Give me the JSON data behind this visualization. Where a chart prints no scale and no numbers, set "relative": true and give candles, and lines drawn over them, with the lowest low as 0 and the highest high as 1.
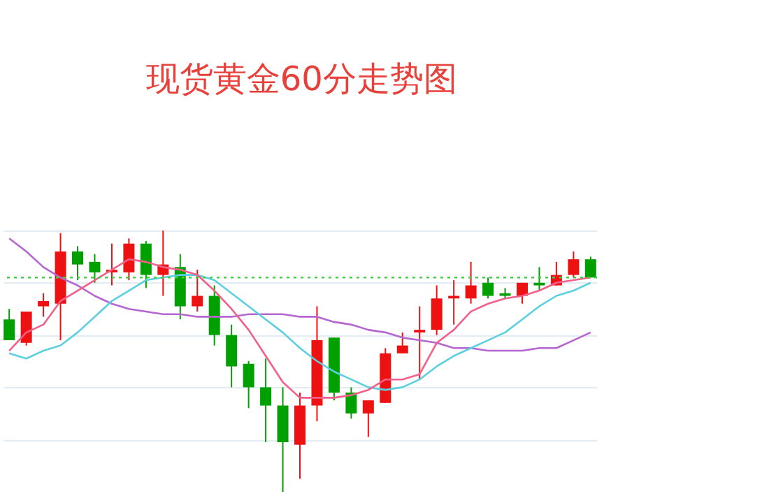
{
  "chart_data": {
    "type": "candlestick",
    "title": "现货黄金60分走势图",
    "relative": true,
    "categories": [
      null,
      null,
      null,
      null,
      null,
      null,
      null,
      null,
      null,
      null,
      null,
      null,
      null,
      null,
      null,
      null,
      null,
      null,
      null,
      null,
      null,
      null,
      null,
      null,
      null,
      null,
      null,
      null,
      null,
      null,
      null,
      null,
      null,
      null,
      null
    ],
    "ohlc": [
      [
        0.66,
        0.7,
        0.58,
        0.58
      ],
      [
        0.57,
        0.69,
        0.56,
        0.69
      ],
      [
        0.71,
        0.76,
        0.67,
        0.73
      ],
      [
        0.72,
        0.99,
        0.58,
        0.92
      ],
      [
        0.92,
        0.94,
        0.81,
        0.87
      ],
      [
        0.88,
        0.91,
        0.8,
        0.84
      ],
      [
        0.84,
        0.95,
        0.79,
        0.85
      ],
      [
        0.84,
        0.97,
        0.81,
        0.95
      ],
      [
        0.95,
        0.96,
        0.78,
        0.83
      ],
      [
        0.83,
        1.0,
        0.75,
        0.87
      ],
      [
        0.86,
        0.91,
        0.66,
        0.71
      ],
      [
        0.71,
        0.85,
        0.69,
        0.75
      ],
      [
        0.75,
        0.79,
        0.56,
        0.6
      ],
      [
        0.6,
        0.64,
        0.4,
        0.48
      ],
      [
        0.49,
        0.5,
        0.32,
        0.4
      ],
      [
        0.4,
        0.51,
        0.19,
        0.33
      ],
      [
        0.33,
        0.4,
        0,
        0.19
      ],
      [
        0.18,
        0.38,
        0.05,
        0.33
      ],
      [
        0.33,
        0.71,
        0.27,
        0.58
      ],
      [
        0.59,
        0.59,
        0.35,
        0.38
      ],
      [
        0.38,
        0.4,
        0.28,
        0.3
      ],
      [
        0.3,
        0.35,
        0.21,
        0.35
      ],
      [
        0.34,
        0.55,
        0.34,
        0.53
      ],
      [
        0.53,
        0.61,
        0.53,
        0.56
      ],
      [
        0.61,
        0.71,
        0.43,
        0.62
      ],
      [
        0.62,
        0.79,
        0.6,
        0.74
      ],
      [
        0.74,
        0.81,
        0.64,
        0.75
      ],
      [
        0.74,
        0.88,
        0.72,
        0.79
      ],
      [
        0.8,
        0.82,
        0.74,
        0.75
      ],
      [
        0.76,
        0.78,
        0.74,
        0.75
      ],
      [
        0.75,
        0.8,
        0.72,
        0.8
      ],
      [
        0.8,
        0.86,
        0.77,
        0.79
      ],
      [
        0.79,
        0.88,
        0.79,
        0.83
      ],
      [
        0.83,
        0.92,
        0.82,
        0.89
      ],
      [
        0.89,
        0.9,
        0.82,
        0.82
      ]
    ],
    "colors": [
      "#00a000",
      "#ee1111",
      "#ee1111",
      "#ee1111",
      "#00a000",
      "#00a000",
      "#ee1111",
      "#ee1111",
      "#00a000",
      "#ee1111",
      "#00a000",
      "#ee1111",
      "#00a000",
      "#00a000",
      "#00a000",
      "#00a000",
      "#00a000",
      "#ee1111",
      "#ee1111",
      "#00a000",
      "#00a000",
      "#ee1111",
      "#ee1111",
      "#ee1111",
      "#ee1111",
      "#ee1111",
      "#ee1111",
      "#ee1111",
      "#00a000",
      "#00a000",
      "#ee1111",
      "#00a000",
      "#ee1111",
      "#ee1111",
      "#00a000"
    ],
    "series": [
      {
        "type": "line",
        "color": "#b566d0",
        "values": [
          0.97,
          0.92,
          0.86,
          0.82,
          0.79,
          0.75,
          0.72,
          0.7,
          0.69,
          0.68,
          0.68,
          0.67,
          0.67,
          0.67,
          0.68,
          0.68,
          0.68,
          0.67,
          0.67,
          0.65,
          0.64,
          0.62,
          0.61,
          0.59,
          0.58,
          0.57,
          0.55,
          0.55,
          0.54,
          0.54,
          0.54,
          0.55,
          0.55,
          0.58,
          0.61
        ]
      },
      {
        "type": "line",
        "color": "#5ccfe0",
        "values": [
          0.53,
          0.51,
          0.54,
          0.56,
          0.61,
          0.67,
          0.73,
          0.77,
          0.81,
          0.82,
          0.83,
          0.83,
          0.81,
          0.76,
          0.71,
          0.66,
          0.61,
          0.55,
          0.5,
          0.46,
          0.43,
          0.4,
          0.39,
          0.4,
          0.43,
          0.48,
          0.52,
          0.55,
          0.58,
          0.61,
          0.66,
          0.71,
          0.75,
          0.77,
          0.8
        ]
      },
      {
        "type": "line",
        "color": "#f0608a",
        "values": [
          0.54,
          0.61,
          0.64,
          0.73,
          0.77,
          0.81,
          0.85,
          0.89,
          0.88,
          0.86,
          0.85,
          0.83,
          0.77,
          0.7,
          0.62,
          0.52,
          0.42,
          0.36,
          0.36,
          0.36,
          0.37,
          0.39,
          0.43,
          0.43,
          0.45,
          0.57,
          0.62,
          0.69,
          0.72,
          0.74,
          0.75,
          0.77,
          0.8,
          0.81,
          0.82
        ]
      }
    ],
    "grid": true,
    "ref_lines": [
      {
        "axis": "y",
        "value": 0.82,
        "color": "#44cc44",
        "line_style": "dotted"
      }
    ]
  }
}
